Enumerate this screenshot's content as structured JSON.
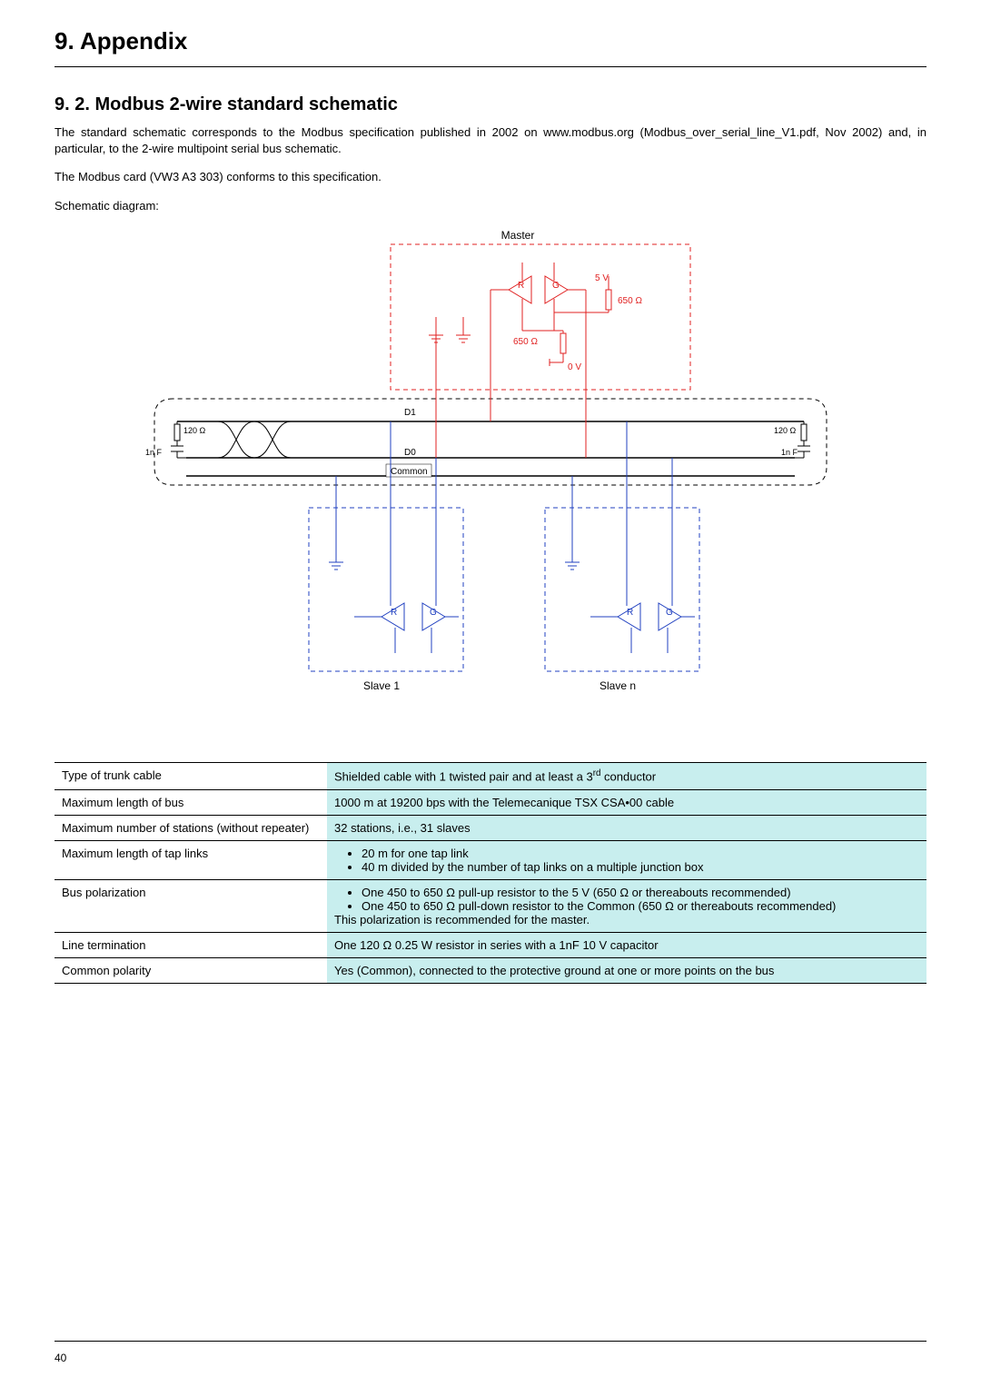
{
  "header": {
    "title": "9. Appendix"
  },
  "section": {
    "heading": "9. 2. Modbus 2-wire standard schematic"
  },
  "paragraphs": {
    "p1a": "The standard schematic corresponds to the Modbus specification published in 2002 on www.modbus.org (Modbus_over_serial_line_V1.pdf, Nov 2002) and, in particular, to the 2-wire multipoint serial bus schematic.",
    "p2": "The Modbus card (VW3 A3 303) conforms to this specification.",
    "p3": "Schematic diagram:"
  },
  "diagram": {
    "labels": {
      "master": "Master",
      "slave1": "Slave 1",
      "slaven": "Slave n",
      "r": "R",
      "g": "G",
      "v5": "5 V",
      "r650a": "650 Ω",
      "r650b": "650 Ω",
      "v0": "0 V",
      "d1": "D1",
      "d0": "D0",
      "common": "Common",
      "r120l": "120 Ω",
      "r120r": "120 Ω",
      "c1l": "1n F",
      "c1r": "1n F"
    },
    "colors": {
      "master": "#e02020",
      "slave": "#2040c0",
      "bus": "#000000",
      "bg": "#ffffff"
    }
  },
  "table": {
    "rows": [
      {
        "label": "Type of trunk cable",
        "value_html": "Shielded cable with 1 twisted pair and at least a 3<sup>rd</sup> conductor"
      },
      {
        "label": "Maximum length of bus",
        "value_html": "1000 m at 19200 bps with the Telemecanique TSX CSA•00 cable"
      },
      {
        "label": "Maximum number of stations (without repeater)",
        "value_html": "32 stations, i.e., 31 slaves"
      },
      {
        "label": "Maximum length of tap links",
        "value_html": "<ul><li>20 m for one tap link</li><li>40 m divided by the number of tap links on a multiple junction box</li></ul>"
      },
      {
        "label": "Bus polarization",
        "value_html": "<ul><li>One 450 to 650 Ω pull-up resistor to the 5 V (650 Ω or thereabouts recommended)</li><li>One 450 to 650 Ω pull-down resistor to the Common (650 Ω or thereabouts recommended)</li></ul>This polarization is recommended for the master."
      },
      {
        "label": "Line termination",
        "value_html": "One 120 Ω 0.25 W resistor in series with a 1nF 10 V capacitor"
      },
      {
        "label": "Common polarity",
        "value_html": "Yes (Common), connected to the protective ground at one or more points on the bus"
      }
    ],
    "label_bg": "#ffffff",
    "value_bg": "#c8eeee",
    "border": "#000000",
    "font_size": 13
  },
  "page_number": "40"
}
